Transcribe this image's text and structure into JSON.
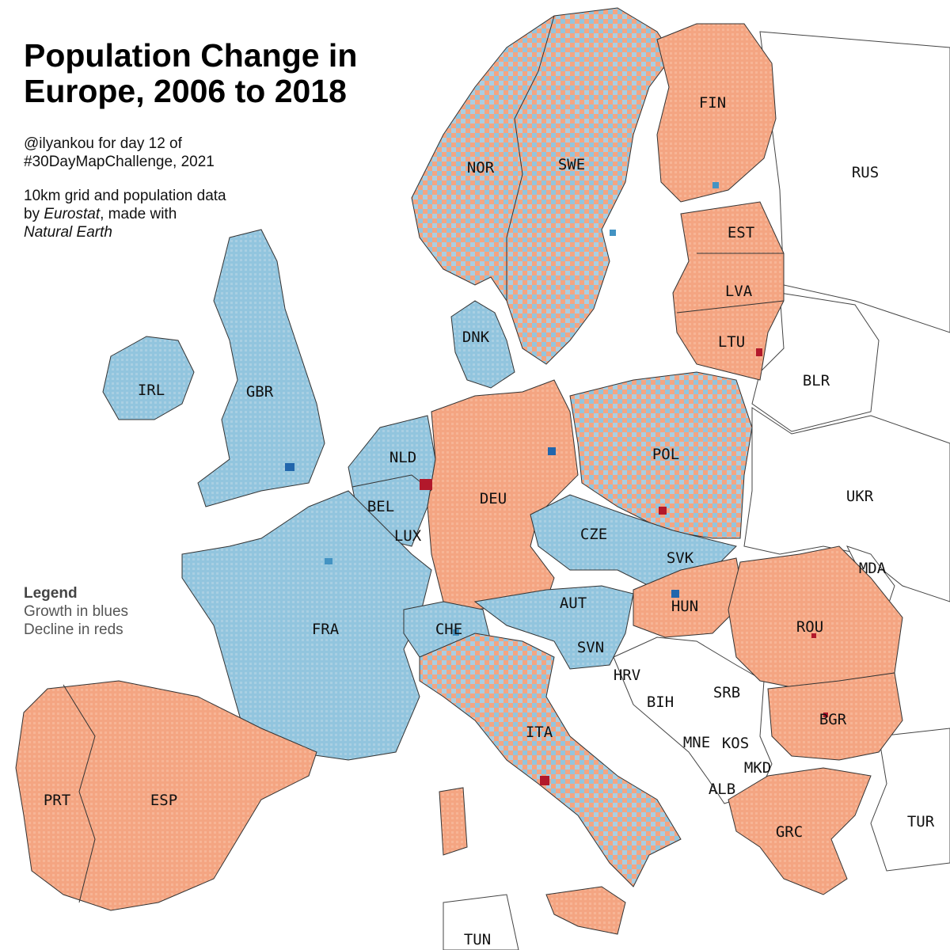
{
  "title_line1": "Population Change in",
  "title_line2": "Europe, 2006 to 2018",
  "credit_line1": "@ilyankou for day 12 of",
  "credit_line2": "#30DayMapChallenge, 2021",
  "source": {
    "line1": "10km grid and population data",
    "by": "by ",
    "eurostat": "Eurostat",
    "made_with": ", made with",
    "natural_earth": "Natural Earth"
  },
  "legend": {
    "title": "Legend",
    "growth": "Growth in blues",
    "decline": "Decline in reds"
  },
  "colors": {
    "decline_light": "#f4a582",
    "growth_light": "#92c5de",
    "growth_strong": "#2166ac",
    "decline_strong": "#b2182b",
    "no_data": "#ffffff",
    "border": "#333333"
  },
  "countries": [
    {
      "code": "FIN",
      "tint": "decline"
    },
    {
      "code": "RUS",
      "tint": "none"
    },
    {
      "code": "NOR",
      "tint": "mixed"
    },
    {
      "code": "SWE",
      "tint": "mixed"
    },
    {
      "code": "EST",
      "tint": "decline"
    },
    {
      "code": "LVA",
      "tint": "decline"
    },
    {
      "code": "LTU",
      "tint": "decline"
    },
    {
      "code": "DNK",
      "tint": "growth"
    },
    {
      "code": "IRL",
      "tint": "growth"
    },
    {
      "code": "GBR",
      "tint": "growth"
    },
    {
      "code": "BLR",
      "tint": "none"
    },
    {
      "code": "NLD",
      "tint": "growth"
    },
    {
      "code": "POL",
      "tint": "mixed"
    },
    {
      "code": "DEU",
      "tint": "decline"
    },
    {
      "code": "BEL",
      "tint": "growth"
    },
    {
      "code": "UKR",
      "tint": "none"
    },
    {
      "code": "LUX",
      "tint": "growth"
    },
    {
      "code": "CZE",
      "tint": "growth"
    },
    {
      "code": "SVK",
      "tint": "mixed"
    },
    {
      "code": "MDA",
      "tint": "none"
    },
    {
      "code": "AUT",
      "tint": "growth"
    },
    {
      "code": "HUN",
      "tint": "decline"
    },
    {
      "code": "FRA",
      "tint": "growth"
    },
    {
      "code": "CHE",
      "tint": "growth"
    },
    {
      "code": "ROU",
      "tint": "decline"
    },
    {
      "code": "SVN",
      "tint": "growth"
    },
    {
      "code": "HRV",
      "tint": "none"
    },
    {
      "code": "BIH",
      "tint": "none"
    },
    {
      "code": "SRB",
      "tint": "none"
    },
    {
      "code": "BGR",
      "tint": "decline"
    },
    {
      "code": "ITA",
      "tint": "mixed"
    },
    {
      "code": "MNE",
      "tint": "none"
    },
    {
      "code": "KOS",
      "tint": "none"
    },
    {
      "code": "MKD",
      "tint": "none"
    },
    {
      "code": "PRT",
      "tint": "decline"
    },
    {
      "code": "ESP",
      "tint": "decline"
    },
    {
      "code": "ALB",
      "tint": "none"
    },
    {
      "code": "TUR",
      "tint": "none"
    },
    {
      "code": "GRC",
      "tint": "decline"
    },
    {
      "code": "TUN",
      "tint": "none"
    }
  ]
}
